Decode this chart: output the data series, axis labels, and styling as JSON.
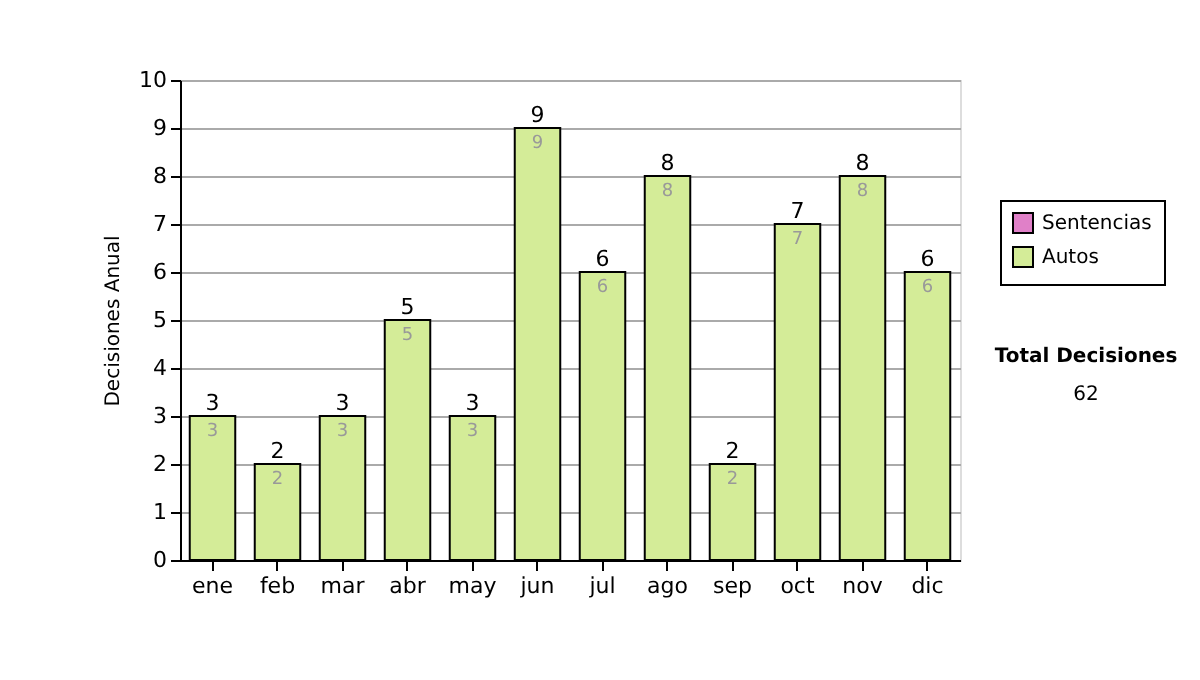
{
  "chart_data": {
    "type": "bar",
    "stacked": true,
    "ylabel": "Decisiones Anual",
    "categories": [
      "ene",
      "feb",
      "mar",
      "abr",
      "may",
      "jun",
      "jul",
      "ago",
      "sep",
      "oct",
      "nov",
      "dic"
    ],
    "series": [
      {
        "name": "Sentencias",
        "color": "#e080c8",
        "values": [
          0,
          0,
          0,
          0,
          0,
          0,
          0,
          0,
          0,
          0,
          0,
          0
        ]
      },
      {
        "name": "Autos",
        "color": "#d4ec98",
        "values": [
          3,
          2,
          3,
          5,
          3,
          9,
          6,
          8,
          2,
          7,
          8,
          6
        ],
        "value_labels": [
          "3",
          "2",
          "3",
          "5",
          "3",
          "9",
          "6",
          "8",
          "2",
          "7",
          "8",
          "6"
        ]
      }
    ],
    "totals": [
      "3",
      "2",
      "3",
      "5",
      "3",
      "9",
      "6",
      "8",
      "2",
      "7",
      "8",
      "6"
    ],
    "ylim": [
      0,
      10
    ],
    "yticks": [
      0,
      1,
      2,
      3,
      4,
      5,
      6,
      7,
      8,
      9,
      10
    ],
    "grid": "y",
    "legend": "right",
    "annotations": [
      "Total Decisiones",
      "62"
    ]
  }
}
